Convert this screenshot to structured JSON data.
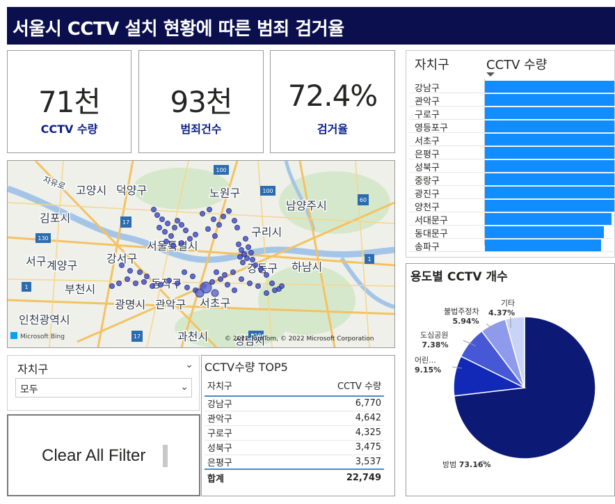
{
  "header": {
    "title": "서울시 CCTV 설치 현황에 따른 범죄 검거율"
  },
  "kpis": [
    {
      "value": "71천",
      "label": "CCTV 수량"
    },
    {
      "value": "93천",
      "label": "범죄건수"
    },
    {
      "value": "72.4%",
      "label": "검거율"
    }
  ],
  "map": {
    "labels": [
      "자유로",
      "고양시",
      "덕양구",
      "노원구",
      "남양주시",
      "김포시",
      "구리시",
      "서울특별시",
      "서구",
      "계양구",
      "강서구",
      "하남시",
      "부천시",
      "광명시",
      "관악구",
      "서초구",
      "인천광역시",
      "과천시",
      "성남시",
      "동작구",
      "강동구"
    ],
    "road_signs": [
      "100",
      "17",
      "100",
      "60",
      "130",
      "110",
      "1",
      "17",
      "1"
    ],
    "attribution": "© 2022 TomTom, © 2022 Microsoft Corporation",
    "brand": "Microsoft Bing"
  },
  "slicer": {
    "label": "자치구",
    "value": "모두"
  },
  "clear_button": {
    "label": "Clear All Filter"
  },
  "top5": {
    "title": "CCTV수량 TOP5",
    "columns": [
      "자치구",
      "CCTV 수량"
    ],
    "rows": [
      {
        "name": "강남구",
        "value": "6,770"
      },
      {
        "name": "관악구",
        "value": "4,642"
      },
      {
        "name": "구로구",
        "value": "4,325"
      },
      {
        "name": "성북구",
        "value": "3,475"
      },
      {
        "name": "은평구",
        "value": "3,537"
      }
    ],
    "total": {
      "name": "합계",
      "value": "22,749"
    }
  },
  "bar_table": {
    "col1": "자치구",
    "col2": "CCTV 수량",
    "bar_color": "#118dff",
    "rows": [
      {
        "name": "강남구",
        "level": 1.0
      },
      {
        "name": "관악구",
        "level": 1.0
      },
      {
        "name": "구로구",
        "level": 1.0
      },
      {
        "name": "영등포구",
        "level": 1.0
      },
      {
        "name": "서초구",
        "level": 1.0
      },
      {
        "name": "은평구",
        "level": 1.0
      },
      {
        "name": "성북구",
        "level": 1.0
      },
      {
        "name": "중랑구",
        "level": 1.0
      },
      {
        "name": "광진구",
        "level": 1.0
      },
      {
        "name": "양천구",
        "level": 1.0
      },
      {
        "name": "서대문구",
        "level": 0.98
      },
      {
        "name": "동대문구",
        "level": 0.92
      },
      {
        "name": "송파구",
        "level": 0.9
      }
    ]
  },
  "chart_data": {
    "type": "pie",
    "title": "용도별 CCTV 개수",
    "slices": [
      {
        "name": "방범",
        "value": 73.16,
        "label": "73.16%",
        "color": "#0c1a75"
      },
      {
        "name": "어린...",
        "value": 9.15,
        "label": "9.15%",
        "color": "#1229b8"
      },
      {
        "name": "도심공원",
        "value": 7.38,
        "label": "7.38%",
        "color": "#4658d6"
      },
      {
        "name": "불법주정차",
        "value": 5.94,
        "label": "5.94%",
        "color": "#8e9bed"
      },
      {
        "name": "기타",
        "value": 4.37,
        "label": "4.37%",
        "color": "#c9d2f7"
      }
    ]
  }
}
